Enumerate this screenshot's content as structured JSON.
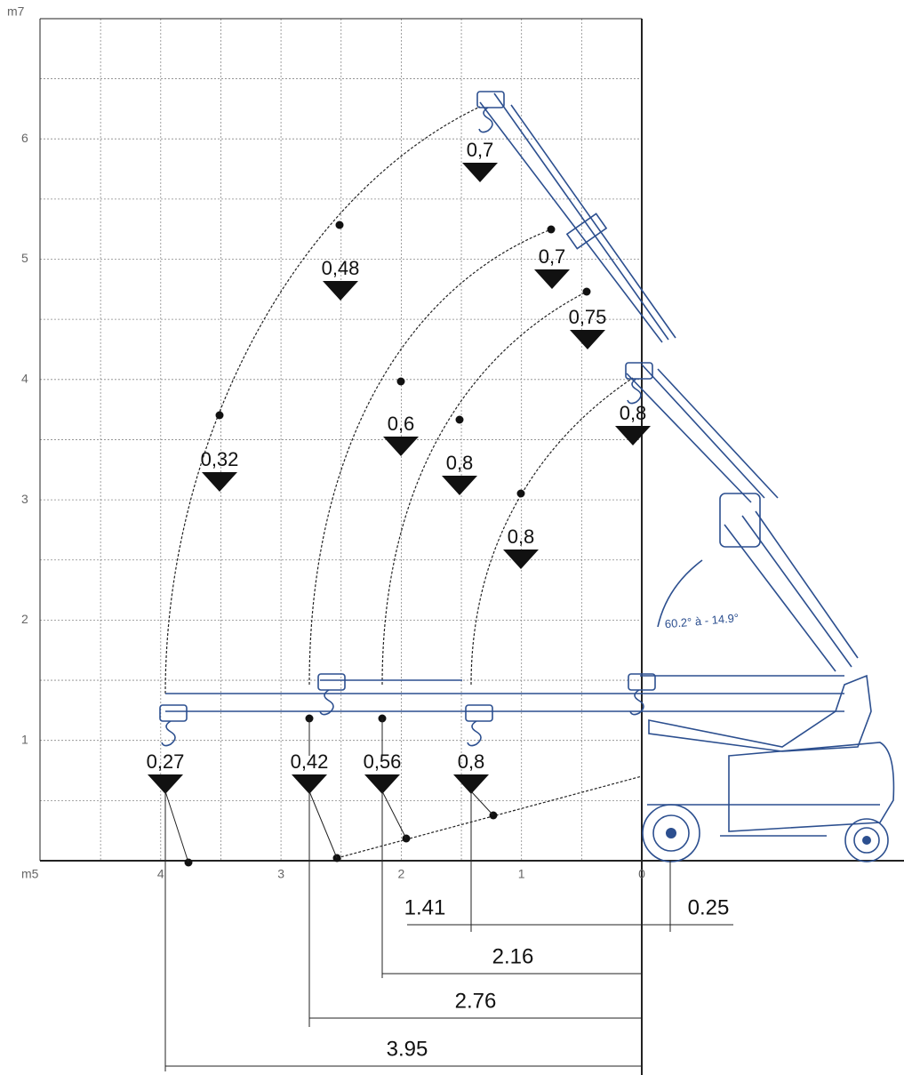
{
  "axes": {
    "y_unit": "m7",
    "x_unit": "m5",
    "y_ticks": [
      "1",
      "2",
      "3",
      "4",
      "5",
      "6"
    ],
    "x_ticks": [
      "4",
      "3",
      "2",
      "1",
      "0"
    ]
  },
  "loads": [
    "0,7",
    "0,48",
    "0,7",
    "0,75",
    "0,32",
    "0,6",
    "0,8",
    "0,8",
    "0,8",
    "0,27",
    "0,42",
    "0,56",
    "0,8"
  ],
  "angle_range": "60.2° à - 14.9°",
  "dimensions": [
    "1.41",
    "0.25",
    "2.16",
    "2.76",
    "3.95"
  ]
}
